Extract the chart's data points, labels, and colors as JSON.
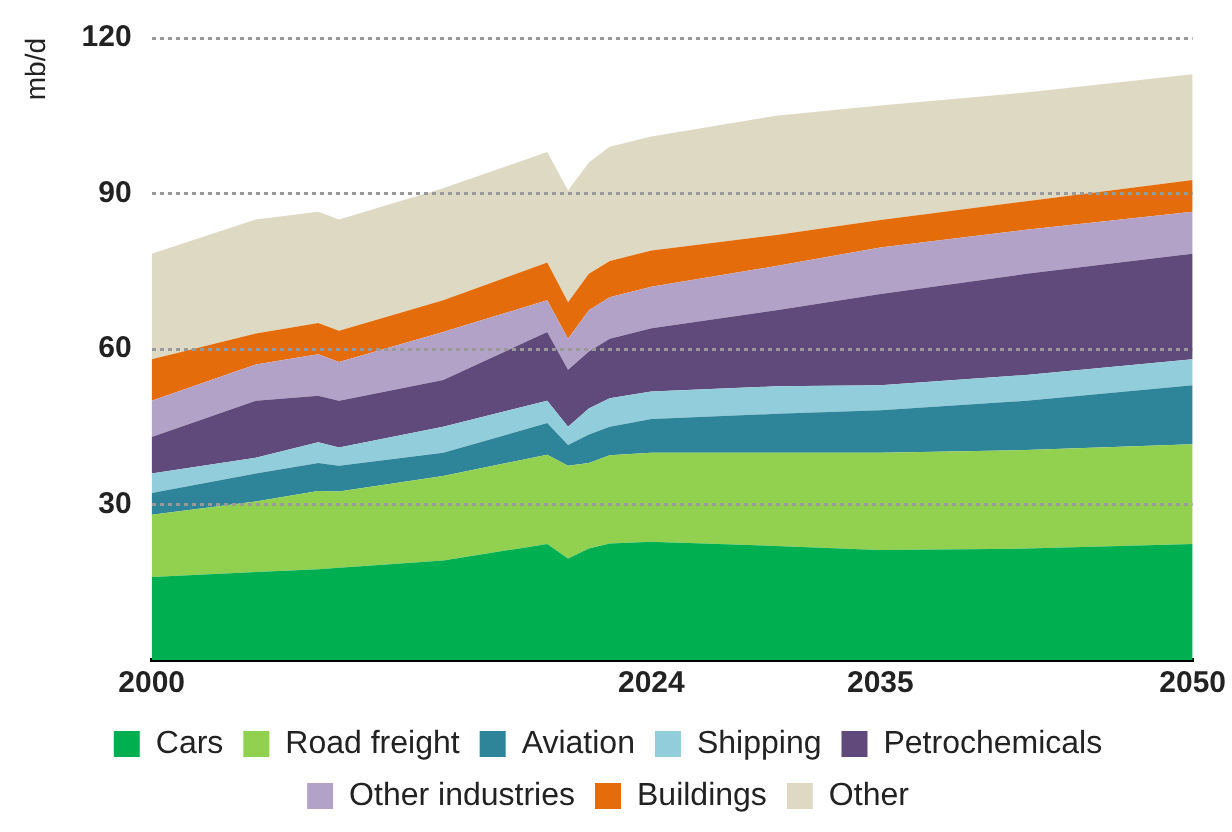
{
  "chart_data": {
    "type": "area",
    "stacked": true,
    "ylabel": "mb/d",
    "x": [
      2000,
      2005,
      2008,
      2009,
      2014,
      2019,
      2020,
      2021,
      2022,
      2024,
      2030,
      2035,
      2042,
      2050
    ],
    "xlim": [
      2000,
      2050
    ],
    "xticks": [
      2000,
      2024,
      2035,
      2050
    ],
    "ylim": [
      0,
      120
    ],
    "yticks": [
      30,
      60,
      90,
      120
    ],
    "grid": "y",
    "legend": "bottom",
    "series": [
      {
        "name": "Cars",
        "color": "#00b050",
        "values": [
          16,
          17,
          17.5,
          17.8,
          19.2,
          22.4,
          19.6,
          21.5,
          22.5,
          22.8,
          22,
          21.2,
          21.5,
          22.4
        ]
      },
      {
        "name": "Road freight",
        "color": "#92d050",
        "values": [
          12,
          13.6,
          15.1,
          14.7,
          16.3,
          17.2,
          17.9,
          16.5,
          17,
          17.2,
          18,
          18.8,
          19,
          19.2
        ]
      },
      {
        "name": "Aviation",
        "color": "#2e8499",
        "values": [
          4.2,
          5.4,
          5.4,
          5,
          4.5,
          6.1,
          4,
          5.5,
          5.5,
          6.5,
          7.5,
          8.2,
          9.5,
          11.4
        ]
      },
      {
        "name": "Shipping",
        "color": "#92cddc",
        "values": [
          3.8,
          3,
          4,
          3.5,
          5,
          4.3,
          3.5,
          5,
          5.5,
          5.3,
          5.3,
          4.8,
          5,
          5
        ]
      },
      {
        "name": "Petrochemicals",
        "color": "#604a7b",
        "values": [
          7,
          11,
          9,
          9,
          9,
          13.3,
          11,
          11,
          11.5,
          12.2,
          14.7,
          17.6,
          19.5,
          20.4
        ]
      },
      {
        "name": "Other industries",
        "color": "#b3a2c7",
        "values": [
          7,
          7,
          8,
          7.5,
          9.3,
          6.1,
          6,
          8,
          8,
          8,
          8.5,
          9,
          8.5,
          8.1
        ]
      },
      {
        "name": "Buildings",
        "color": "#e46c0a",
        "values": [
          8,
          6,
          6,
          6,
          6.1,
          7.3,
          7,
          7,
          7,
          7,
          6,
          5.3,
          5.5,
          6.1
        ]
      },
      {
        "name": "Other",
        "color": "#ddd9c3",
        "values": [
          20.4,
          22,
          21.5,
          21.5,
          21.6,
          21.3,
          21.6,
          21.5,
          22,
          22,
          23,
          22.1,
          21,
          20.4
        ]
      }
    ]
  }
}
